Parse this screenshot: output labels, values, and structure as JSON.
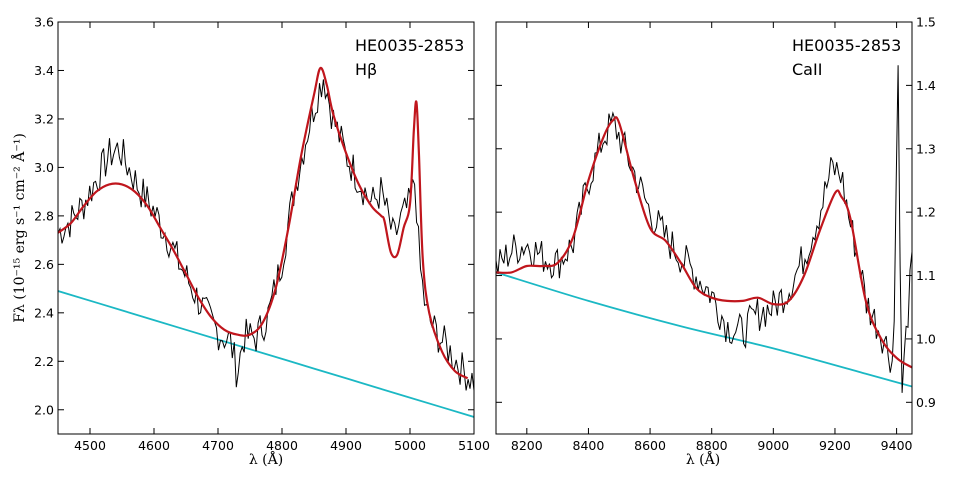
{
  "chart_data": [
    {
      "type": "line",
      "annotation": "HE0035-2853",
      "line_label": "Hβ",
      "xlabel": "λ (Å)",
      "ylabel": "Fλ (10⁻¹⁵ erg s⁻¹ cm⁻² Å⁻¹)",
      "xlim": [
        4450,
        5100
      ],
      "ylim": [
        1.9,
        3.6
      ],
      "xticks": [
        4500,
        4600,
        4700,
        4800,
        4900,
        5000,
        5100
      ],
      "yticks": [
        2.0,
        2.2,
        2.4,
        2.6,
        2.8,
        3.0,
        3.2,
        3.4,
        3.6
      ],
      "colors": {
        "observed": "#000000",
        "model": "#c0161d",
        "continuum": "#1bb8c4"
      },
      "series": [
        {
          "name": "observed",
          "style": "noisy",
          "x": [
            4450,
            4470,
            4490,
            4510,
            4530,
            4545,
            4560,
            4580,
            4600,
            4620,
            4640,
            4660,
            4680,
            4700,
            4720,
            4730,
            4740,
            4760,
            4780,
            4800,
            4820,
            4840,
            4855,
            4865,
            4880,
            4900,
            4920,
            4940,
            4955,
            4965,
            4975,
            4985,
            5000,
            5008,
            5015,
            5025,
            5040,
            5060,
            5080,
            5100
          ],
          "y": [
            2.73,
            2.78,
            2.85,
            2.95,
            3.05,
            3.08,
            3.0,
            2.9,
            2.82,
            2.72,
            2.6,
            2.5,
            2.4,
            2.32,
            2.28,
            2.15,
            2.3,
            2.3,
            2.4,
            2.62,
            2.92,
            3.15,
            3.3,
            3.38,
            3.2,
            3.05,
            2.95,
            2.85,
            2.9,
            2.8,
            2.7,
            2.78,
            2.85,
            2.95,
            2.6,
            2.4,
            2.32,
            2.25,
            2.17,
            2.12
          ]
        },
        {
          "name": "model",
          "style": "smooth",
          "x": [
            4450,
            4470,
            4490,
            4510,
            4530,
            4550,
            4570,
            4590,
            4610,
            4630,
            4650,
            4670,
            4690,
            4710,
            4730,
            4750,
            4770,
            4790,
            4810,
            4830,
            4850,
            4860,
            4870,
            4880,
            4900,
            4920,
            4940,
            4955,
            4960,
            4970,
            4980,
            4990,
            5000,
            5006,
            5010,
            5014,
            5020,
            5030,
            5050,
            5070,
            5090
          ],
          "y": [
            2.73,
            2.77,
            2.84,
            2.9,
            2.93,
            2.93,
            2.9,
            2.84,
            2.75,
            2.66,
            2.56,
            2.46,
            2.38,
            2.33,
            2.31,
            2.31,
            2.36,
            2.5,
            2.75,
            3.05,
            3.3,
            3.41,
            3.34,
            3.22,
            3.06,
            2.93,
            2.84,
            2.8,
            2.78,
            2.65,
            2.64,
            2.75,
            2.85,
            3.15,
            3.27,
            3.05,
            2.62,
            2.4,
            2.24,
            2.16,
            2.13
          ]
        },
        {
          "name": "continuum",
          "style": "line",
          "x": [
            4450,
            4550,
            4650,
            4750,
            4850,
            4950,
            5050,
            5100
          ],
          "y": [
            2.49,
            2.41,
            2.33,
            2.25,
            2.17,
            2.09,
            2.01,
            1.97
          ]
        }
      ]
    },
    {
      "type": "line",
      "annotation": "HE0035-2853",
      "line_label": "CaII",
      "xlabel": "λ (Å)",
      "ylabel": "",
      "xlim": [
        8100,
        9450
      ],
      "ylim": [
        0.85,
        1.5
      ],
      "xticks": [
        8200,
        8400,
        8600,
        8800,
        9000,
        9200,
        9400
      ],
      "yticks": [
        0.9,
        1.0,
        1.1,
        1.2,
        1.3,
        1.4,
        1.5
      ],
      "colors": {
        "observed": "#000000",
        "model": "#c0161d",
        "continuum": "#1bb8c4"
      },
      "series": [
        {
          "name": "observed",
          "style": "noisy",
          "x": [
            8100,
            8150,
            8200,
            8250,
            8300,
            8350,
            8400,
            8450,
            8480,
            8500,
            8550,
            8600,
            8650,
            8700,
            8750,
            8800,
            8850,
            8900,
            8950,
            9000,
            9050,
            9100,
            9150,
            9190,
            9220,
            9250,
            9280,
            9300,
            9330,
            9360,
            9390,
            9405,
            9415,
            9430,
            9450
          ],
          "y": [
            1.11,
            1.14,
            1.15,
            1.13,
            1.12,
            1.15,
            1.25,
            1.32,
            1.34,
            1.32,
            1.26,
            1.2,
            1.16,
            1.13,
            1.1,
            1.07,
            1.02,
            1.01,
            1.04,
            1.05,
            1.08,
            1.13,
            1.2,
            1.27,
            1.26,
            1.18,
            1.12,
            1.06,
            1.03,
            1.0,
            0.96,
            1.46,
            0.9,
            1.0,
            1.12
          ]
        },
        {
          "name": "model",
          "style": "smooth",
          "x": [
            8100,
            8150,
            8200,
            8250,
            8300,
            8350,
            8400,
            8450,
            8480,
            8500,
            8550,
            8600,
            8650,
            8700,
            8750,
            8800,
            8850,
            8900,
            8950,
            9000,
            9050,
            9100,
            9150,
            9200,
            9220,
            9250,
            9300,
            9350,
            9400,
            9450
          ],
          "y": [
            1.105,
            1.105,
            1.115,
            1.115,
            1.12,
            1.16,
            1.25,
            1.32,
            1.345,
            1.34,
            1.25,
            1.175,
            1.155,
            1.12,
            1.08,
            1.065,
            1.06,
            1.06,
            1.065,
            1.055,
            1.06,
            1.1,
            1.17,
            1.23,
            1.225,
            1.19,
            1.06,
            1.0,
            0.97,
            0.955
          ]
        },
        {
          "name": "continuum",
          "style": "line",
          "x": [
            8100,
            8400,
            8700,
            9000,
            9300,
            9450
          ],
          "y": [
            1.105,
            1.06,
            1.02,
            0.985,
            0.945,
            0.925
          ]
        }
      ]
    }
  ]
}
